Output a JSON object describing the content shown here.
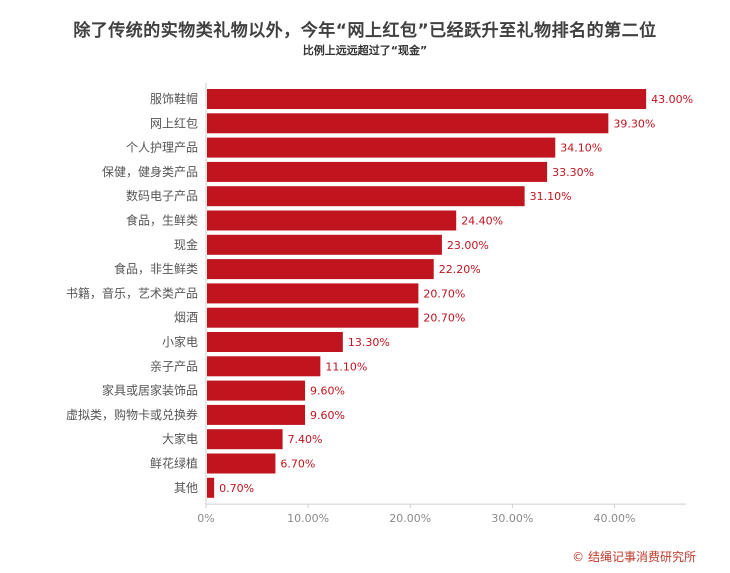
{
  "chart_data": {
    "type": "bar",
    "orientation": "horizontal",
    "title": "除了传统的实物类礼物以外，今年“网上红包”已经跃升至礼物排名的第二位",
    "subtitle": "比例上远远超过了“现金”",
    "categories": [
      "服饰鞋帽",
      "网上红包",
      "个人护理产品",
      "保健，健身类产品",
      "数码电子产品",
      "食品，生鲜类",
      "现金",
      "食品，非生鲜类",
      "书籍，音乐，艺术类产品",
      "烟酒",
      "小家电",
      "亲子产品",
      "家具或居家装饰品",
      "虚拟类，购物卡或兑换券",
      "大家电",
      "鲜花绿植",
      "其他"
    ],
    "values": [
      43.0,
      39.3,
      34.1,
      33.3,
      31.1,
      24.4,
      23.0,
      22.2,
      20.7,
      20.7,
      13.3,
      11.1,
      9.6,
      9.6,
      7.4,
      6.7,
      0.7
    ],
    "value_labels": [
      "43.00%",
      "39.30%",
      "34.10%",
      "33.30%",
      "31.10%",
      "24.40%",
      "23.00%",
      "22.20%",
      "20.70%",
      "20.70%",
      "13.30%",
      "11.10%",
      "9.60%",
      "9.60%",
      "7.40%",
      "6.70%",
      "0.70%"
    ],
    "x_ticks": [
      0,
      10,
      20,
      30,
      40
    ],
    "x_tick_labels": [
      "0%",
      "10.00%",
      "20.00%",
      "30.00%",
      "40.00%"
    ],
    "xlim": [
      0,
      47
    ],
    "grid": false,
    "legend": "none",
    "bar_color": "#c0141f",
    "label_color": "#c0141f",
    "source": "© 结绳记事消费研究所"
  }
}
